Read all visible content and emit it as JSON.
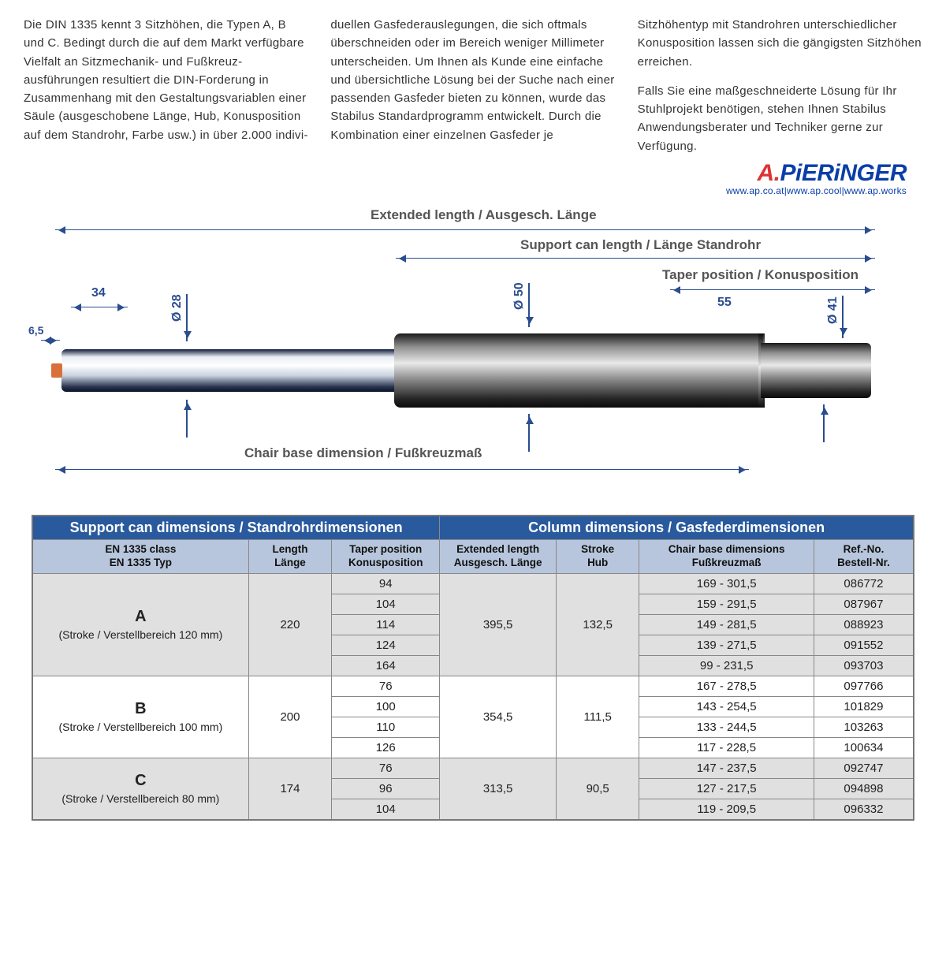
{
  "intro": {
    "p1": "Die DIN 1335 kennt 3 Sitzhöhen, die Typen A, B und C. Bedingt durch die auf dem Markt verfügbare Vielfalt an Sitzmechanik- und Fußkreuz­ausführungen resultiert die DIN-Forderung in Zusammenhang mit den Gestaltungsvariablen einer Säule (ausgeschobene Länge, Hub, Konusposition auf dem Standrohr, Farbe usw.) in über 2.000 indivi­duellen Gasfederauslegungen, die sich oftmals überschneiden oder im Bereich weniger Millimeter unter­scheiden. Um Ihnen als Kunde eine einfache und übersichtliche Lösung bei der Suche nach einer passenden Gasfeder bieten zu können, wurde das Stabilus Standardprogramm ent­wickelt. Durch die Kombination einer einzelnen Gasfeder je Sitzhöhentyp mit Standrohren unterschiedlicher Konusposition lassen sich die gängigsten Sitzhöhen erreichen.",
    "p2": "Falls Sie eine maßgeschneiderte Lö­sung für Ihr Stuhlprojekt benötigen, stehen Ihnen Stabilus Anwendungs­berater und Techniker gerne zur Verfügung."
  },
  "logo": {
    "brand": "A.PiERiNGER",
    "sub": "www.ap.co.at|www.ap.cool|www.ap.works"
  },
  "diagram": {
    "extended": "Extended length /  Ausgesch. Länge",
    "support": "Support can length / Länge Standrohr",
    "taperpos": "Taper position / Konusposition",
    "chairbase": "Chair base dimension / Fußkreuzmaß",
    "d28": "Ø 28",
    "d50": "Ø 50",
    "d41": "Ø 41",
    "m34": "34",
    "m65": "6,5",
    "m55": "55"
  },
  "table": {
    "head_left": "Support can dimensions / Standrohrdimensionen",
    "head_right": "Column dimensions / Gasfederdimensionen",
    "cols": {
      "c1a": "EN 1335 class",
      "c1b": "EN 1335 Typ",
      "c2a": "Length",
      "c2b": "Länge",
      "c3a": "Taper position",
      "c3b": "Konusposition",
      "c4a": "Extended length",
      "c4b": "Ausgesch. Länge",
      "c5a": "Stroke",
      "c5b": "Hub",
      "c6a": "Chair base dimensions",
      "c6b": "Fußkreuzmaß",
      "c7a": "Ref.-No.",
      "c7b": "Bestell-Nr."
    },
    "groups": [
      {
        "cls": "A",
        "sub": "(Stroke / Verstellbereich 120 mm)",
        "len": "220",
        "ext": "395,5",
        "stroke": "132,5",
        "rows": [
          {
            "taper": "94",
            "cb": "169 - 301,5",
            "ref": "086772"
          },
          {
            "taper": "104",
            "cb": "159 - 291,5",
            "ref": "087967"
          },
          {
            "taper": "114",
            "cb": "149 - 281,5",
            "ref": "088923"
          },
          {
            "taper": "124",
            "cb": "139 - 271,5",
            "ref": "091552"
          },
          {
            "taper": "164",
            "cb": "99 - 231,5",
            "ref": "093703"
          }
        ]
      },
      {
        "cls": "B",
        "sub": "(Stroke / Verstellbereich 100 mm)",
        "len": "200",
        "ext": "354,5",
        "stroke": "111,5",
        "rows": [
          {
            "taper": "76",
            "cb": "167 - 278,5",
            "ref": "097766"
          },
          {
            "taper": "100",
            "cb": "143 - 254,5",
            "ref": "101829"
          },
          {
            "taper": "110",
            "cb": "133 - 244,5",
            "ref": "103263"
          },
          {
            "taper": "126",
            "cb": "117 - 228,5",
            "ref": "100634"
          }
        ]
      },
      {
        "cls": "C",
        "sub": "(Stroke / Verstellbereich 80 mm)",
        "len": "174",
        "ext": "313,5",
        "stroke": "90,5",
        "rows": [
          {
            "taper": "76",
            "cb": "147 - 237,5",
            "ref": "092747"
          },
          {
            "taper": "96",
            "cb": "127 - 217,5",
            "ref": "094898"
          },
          {
            "taper": "104",
            "cb": "119 - 209,5",
            "ref": "096332"
          }
        ]
      }
    ]
  }
}
